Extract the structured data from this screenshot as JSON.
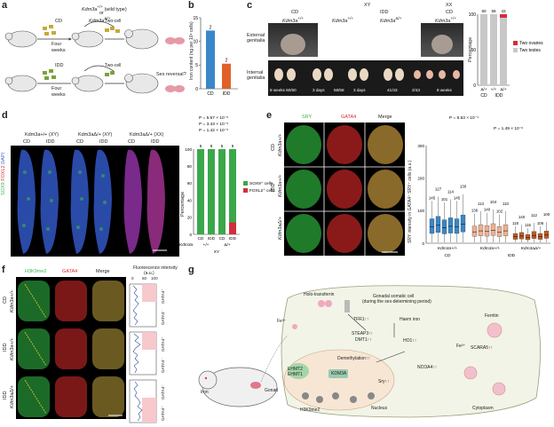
{
  "panels": {
    "a": {
      "label": "a",
      "mouse_top": "Kdm3a",
      "mouse_top_sup": "+/+",
      "wild_type": " (wild type)",
      "or": "or",
      "mouse_bot_sup": "Δ/+",
      "cd": "CD",
      "idd": "IDD",
      "four_weeks_1": "Four",
      "four_weeks_2": "weeks",
      "two_cell": "Two-cell",
      "sex_reversal": "Sex reversal?"
    },
    "b": {
      "label": "b",
      "ylabel": "Iron content (ng per 10⁶ cells)",
      "bars": [
        {
          "name": "CD",
          "value": 12.3,
          "n": "2",
          "color": "#3a86c8"
        },
        {
          "name": "IDD",
          "value": 5.3,
          "n": "2",
          "color": "#e0622a"
        }
      ],
      "ylim": [
        0,
        15
      ],
      "yticks": [
        "0",
        "5",
        "10",
        "15"
      ]
    },
    "c": {
      "label": "c",
      "xy": "XY",
      "xx": "XX",
      "cd": "CD",
      "idd": "IDD",
      "cd2": "CD",
      "g_pp": "+/+",
      "g_dp": "Δ/+",
      "g_pp2": "+/+",
      "external": "External genitalia",
      "internal": "Internal genitalia",
      "bottom_texts": [
        "8 weeks 60/60",
        "3 days",
        "58/58",
        "3 days",
        "41/43",
        "2/43",
        "8 weeks"
      ],
      "chart": {
        "type": "bar",
        "ylabel": "Percentage",
        "yticks": [
          "0",
          "50",
          "100"
        ],
        "n_labels": [
          "60",
          "58",
          "43"
        ],
        "categories": [
          "Δ/+",
          "+/+",
          "Δ/+"
        ],
        "groups": [
          "CD",
          "IDD"
        ],
        "legend": [
          "Two ovaries",
          "Two testes"
        ],
        "legend_colors": [
          "#d0303b",
          "#c8c8c8"
        ],
        "testes_pct": [
          100,
          100,
          95
        ]
      }
    },
    "d": {
      "label": "d",
      "stain_sox9": "SOX9",
      "stain_foxl2": "FOXL2",
      "stain_dapi": "DAPI",
      "genos": [
        "Kdm3a+/+ (XY)",
        "Kdm3aΔ/+ (XY)",
        "Kdm3aΔ/+ (XX)"
      ],
      "sub": [
        "CD",
        "IDD",
        "CD",
        "IDD",
        "CD",
        "IDD"
      ],
      "chart": {
        "type": "bar",
        "ylabel": "Percentage",
        "pvals": [
          "P = 5.57 × 10⁻⁶",
          "P = 3.43 × 10⁻⁵",
          "P = 1.42 × 10⁻⁵"
        ],
        "n_labels": [
          "6",
          "9",
          "6",
          "9"
        ],
        "categories": [
          "CD",
          "IDD",
          "CD",
          "IDD"
        ],
        "geno_labels": [
          "+/+",
          "Δ/+"
        ],
        "xy": "XY",
        "kdm": "Kdm3a",
        "sox9_pct": [
          100,
          100,
          100,
          86
        ],
        "legend": [
          "SOX9⁺ cells",
          "FOXL2⁺ cells"
        ],
        "legend_colors": [
          "#3aa84a",
          "#d0303b"
        ],
        "yticks": [
          "0",
          "20",
          "40",
          "60",
          "80",
          "100"
        ]
      }
    },
    "e": {
      "label": "e",
      "sry": "SRY",
      "gata4": "GATA4",
      "merge": "Merge",
      "rows": [
        {
          "diet": "CD",
          "geno": "Kdm3a+/+"
        },
        {
          "diet": "IDD",
          "geno": "Kdm3a+/+"
        },
        {
          "diet": "",
          "geno": "Kdm3aΔ/+"
        }
      ],
      "chart": {
        "type": "box",
        "ylabel": "SRY intensity in GATA4⁺ SRY⁺ cells (a.u.)",
        "pvals": [
          "P = 5.53 × 10⁻⁴",
          "P = 1.49 × 10⁻⁶"
        ],
        "yticks": [
          "0",
          "100",
          "200",
          "300"
        ],
        "ylim": [
          0,
          300
        ],
        "groups": [
          "Kdm3a+/+",
          "Kdm3a+/+",
          "Kdm3aΔ/+"
        ],
        "diets": [
          "CD",
          "IDD"
        ],
        "n_cd": [
          "145",
          "127",
          "101",
          "114",
          "145",
          "130"
        ],
        "n_idd1": [
          "136",
          "113",
          "140",
          "104",
          "102",
          "110"
        ],
        "n_idd2": [
          "118",
          "140",
          "115",
          "112",
          "106",
          "100"
        ],
        "medians_cd": [
          50,
          55,
          48,
          52,
          50,
          58
        ],
        "medians_idd1": [
          35,
          38,
          36,
          40,
          34,
          38
        ],
        "medians_idd2": [
          20,
          22,
          18,
          24,
          20,
          25
        ]
      }
    },
    "f": {
      "label": "f",
      "h3k": "H3K9me2",
      "gata4": "GATA4",
      "merge": "Merge",
      "fluor_title": "Fluorescence intensity",
      "fluor_unit": "(a.u.)",
      "fluor_ticks": [
        "0",
        "50",
        "100"
      ],
      "rows": [
        {
          "diet": "CD",
          "geno": "Kdm3a+/+"
        },
        {
          "diet": "IDD",
          "geno": "Kdm3a+/+"
        },
        {
          "diet": "IDD",
          "geno": "Kdm3aΔ/+"
        }
      ],
      "gata_side": [
        "GATA4⁺",
        "GATA4⁻"
      ]
    },
    "g": {
      "label": "g",
      "title1": "Gonadal somatic cell",
      "title2": "(during the sex-determining period)",
      "holo": "Holo-transferrin",
      "fe3": "Fe³⁺",
      "fe2": "Fe²⁺",
      "tfr1": "TFR1↑↑",
      "steap": "STEAP3↑↑",
      "dmt1": "DMT1↑↑",
      "haem": "Haem iron",
      "ho1": "HO1↑↑",
      "ferritin": "Ferritin",
      "scara5": "SCARA5↑↑",
      "ncoa4": "NCOA4↑↑",
      "demeth": "Demethylation↑↑",
      "ehmt2": "EHMT2",
      "ehmt1": "EHMT1",
      "kdm3a": "KDM3A",
      "sry": "Sry↑↑",
      "h3k": "H3K9me2",
      "nucleus": "Nucleus",
      "cytoplasm": "Cytoplasm",
      "iron": "Iron",
      "gonad": "Gonad"
    }
  }
}
